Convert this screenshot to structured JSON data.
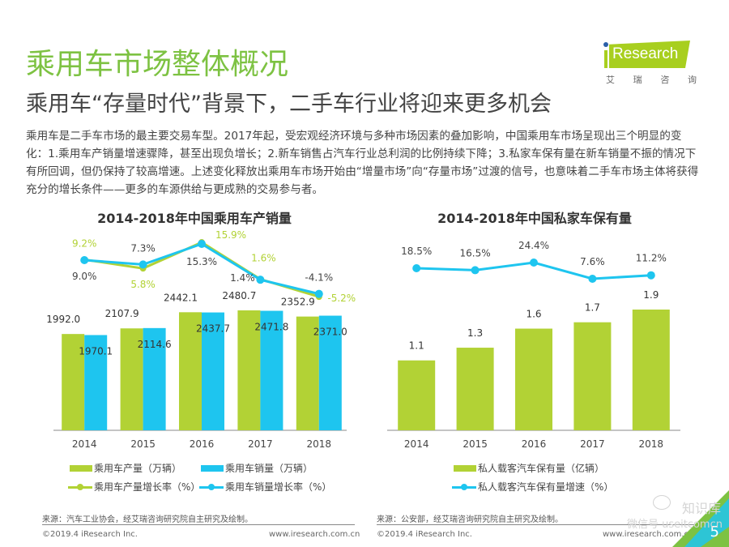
{
  "header": {
    "title": "乘用车市场整体概况",
    "subtitle": "乘用车“存量时代”背景下，二手车行业将迎来更多机会"
  },
  "logo": {
    "brand": "Research",
    "cn_chars": [
      "艾",
      "瑞",
      "咨",
      "询"
    ]
  },
  "paragraph": "乘用车是二手车市场的最主要交易车型。2017年起，受宏观经济环境与多种市场因素的叠加影响，中国乘用车市场呈现出三个明显的变化：1.乘用车产销量增速骤降，甚至出现负增长；2.新车销售占汽车行业总利润的比例持续下降；3.私家车保有量在新车销量不振的情况下有所回调，但仍保持了较高增速。上述变化释放出乘用车市场开始由“增量市场”向“存量市场”过渡的信号，也意味着二手车市场主体将获得充分的增长条件——更多的车源供给与更成熟的交易参与者。",
  "colors": {
    "green": "#b2d235",
    "blue": "#1ec5ef",
    "title_green": "#7dc242"
  },
  "chart_data": [
    {
      "type": "bar",
      "title": "2014-2018年中国乘用车产销量",
      "categories": [
        "2014",
        "2015",
        "2016",
        "2017",
        "2018"
      ],
      "series": [
        {
          "name": "乘用车产量（万辆）",
          "kind": "bar",
          "color": "#b2d235",
          "values": [
            1992.0,
            2107.9,
            2442.1,
            2480.7,
            2352.9
          ],
          "labels": [
            "1992.0",
            "2107.9",
            "2442.1",
            "2480.7",
            "2352.9"
          ]
        },
        {
          "name": "乘用车销量（万辆）",
          "kind": "bar",
          "color": "#1ec5ef",
          "values": [
            1970.1,
            2114.6,
            2437.7,
            2471.8,
            2371.0
          ],
          "labels": [
            "1970.1",
            "2114.6",
            "2437.7",
            "2471.8",
            "2371.0"
          ]
        },
        {
          "name": "乘用车产量增长率（%）",
          "kind": "line",
          "color": "#b2d235",
          "values": [
            9.2,
            5.8,
            15.9,
            1.6,
            -5.2
          ],
          "labels": [
            "9.2%",
            "5.8%",
            "15.9%",
            "1.6%",
            "-5.2%"
          ]
        },
        {
          "name": "乘用车销量增长率（%）",
          "kind": "line",
          "color": "#1ec5ef",
          "values": [
            9.0,
            7.3,
            15.3,
            1.4,
            -4.1
          ],
          "labels": [
            "9.0%",
            "7.3%",
            "15.3%",
            "1.4%",
            "-4.1%"
          ]
        }
      ],
      "ylim_bar": [
        0,
        2600
      ],
      "ylim_line": [
        -25,
        25
      ],
      "grid": false,
      "legend_position": "bottom",
      "source": "来源：汽车工业协会，经艾瑞咨询研究院自主研究及绘制。"
    },
    {
      "type": "bar",
      "title": "2014-2018年中国私家车保有量",
      "categories": [
        "2014",
        "2015",
        "2016",
        "2017",
        "2018"
      ],
      "series": [
        {
          "name": "私人载客汽车保有量（亿辆）",
          "kind": "bar",
          "color": "#b2d235",
          "values": [
            1.1,
            1.3,
            1.6,
            1.7,
            1.9
          ],
          "labels": [
            "1.1",
            "1.3",
            "1.6",
            "1.7",
            "1.9"
          ]
        },
        {
          "name": "私人载客汽车保有量增速（%）",
          "kind": "line",
          "color": "#1ec5ef",
          "values": [
            18.5,
            16.5,
            24.4,
            7.6,
            11.2
          ],
          "labels": [
            "18.5%",
            "16.5%",
            "24.4%",
            "7.6%",
            "11.2%"
          ]
        }
      ],
      "ylim_bar": [
        0,
        2.0
      ],
      "ylim_line": [
        -60,
        40
      ],
      "grid": false,
      "legend_position": "bottom",
      "source": "来源：公安部，经艾瑞咨询研究院自主研究及绘制。"
    }
  ],
  "footer": {
    "copyright": "©2019.4 iResearch Inc.",
    "url": "www.iresearch.com.cn",
    "page_number": "5",
    "watermark": "知识库",
    "watermark2": "微信号 useitcomcn"
  }
}
